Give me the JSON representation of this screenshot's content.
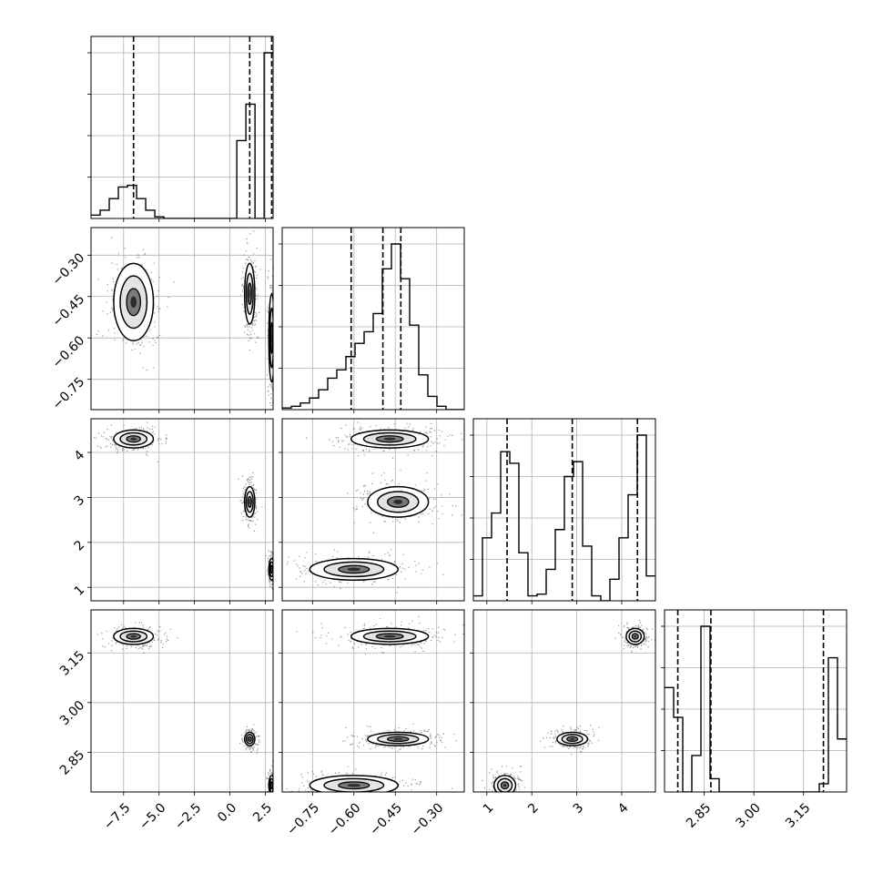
{
  "chart_data": {
    "type": "corner",
    "grid": true,
    "quantile_lines": "dashed",
    "ticks": {
      "p0": [
        "−7.5",
        "−5.0",
        "−2.5",
        "0.0",
        "2.5"
      ],
      "p1": [
        "−0.75",
        "−0.60",
        "−0.45",
        "−0.30"
      ],
      "p2": [
        "1",
        "2",
        "3",
        "4"
      ],
      "p3": [
        "2.85",
        "3.00",
        "3.15"
      ]
    },
    "ticks_num": {
      "p0": [
        -7.5,
        -5.0,
        -2.5,
        0.0,
        2.5
      ],
      "p1": [
        -0.75,
        -0.6,
        -0.45,
        -0.3
      ],
      "p2": [
        1,
        2,
        3,
        4
      ],
      "p3": [
        2.85,
        3.0,
        3.15
      ]
    },
    "ranges": {
      "p0": [
        -9.8,
        3.05
      ],
      "p1": [
        -0.86,
        -0.2
      ],
      "p2": [
        0.7,
        4.75
      ],
      "p3": [
        2.73,
        3.28
      ]
    },
    "marginals": [
      {
        "param": "p0",
        "quantiles": [
          -6.8,
          1.4,
          2.95
        ],
        "bins": {
          "start": -9.8,
          "width": 0.643
        },
        "counts": [
          0.02,
          0.05,
          0.12,
          0.19,
          0.2,
          0.12,
          0.05,
          0.01,
          0,
          0,
          0,
          0,
          0,
          0,
          0,
          0,
          0.47,
          0.69,
          0,
          1.0
        ]
      },
      {
        "param": "p1",
        "quantiles": [
          -0.61,
          -0.495,
          -0.43
        ],
        "bins": {
          "start": -0.86,
          "width": 0.033
        },
        "counts": [
          0.01,
          0.02,
          0.04,
          0.07,
          0.12,
          0.19,
          0.24,
          0.32,
          0.4,
          0.47,
          0.58,
          0.85,
          1.0,
          0.79,
          0.51,
          0.21,
          0.08,
          0.02,
          0,
          0
        ]
      },
      {
        "param": "p2",
        "quantiles": [
          1.45,
          2.9,
          4.35
        ],
        "bins": {
          "start": 0.7,
          "width": 0.2025
        },
        "counts": [
          0.03,
          0.38,
          0.53,
          0.9,
          0.83,
          0.29,
          0.03,
          0.04,
          0.19,
          0.43,
          0.75,
          0.84,
          0.33,
          0.03,
          0,
          0.13,
          0.38,
          0.64,
          1.0,
          0.15
        ]
      },
      {
        "param": "p3",
        "quantiles": [
          2.77,
          2.87,
          3.21
        ],
        "bins": {
          "start": 2.73,
          "width": 0.0275
        },
        "counts": [
          0.63,
          0.45,
          0,
          0.22,
          1.0,
          0.08,
          0,
          0,
          0,
          0,
          0,
          0,
          0,
          0,
          0,
          0,
          0,
          0.05,
          0.81,
          0.32
        ]
      }
    ],
    "clusters": [
      {
        "p0": -6.8,
        "p1": -0.47,
        "p2": 4.3,
        "p3": 3.2,
        "sd": {
          "p0": 0.7,
          "p1": 0.07,
          "p2": 0.1,
          "p3": 0.012
        }
      },
      {
        "p0": 1.4,
        "p1": -0.44,
        "p2": 2.9,
        "p3": 2.89,
        "sd": {
          "p0": 0.18,
          "p1": 0.055,
          "p2": 0.17,
          "p3": 0.01
        }
      },
      {
        "p0": 2.95,
        "p1": -0.6,
        "p2": 1.4,
        "p3": 2.75,
        "sd": {
          "p0": 0.1,
          "p1": 0.08,
          "p2": 0.12,
          "p3": 0.015
        }
      }
    ]
  }
}
